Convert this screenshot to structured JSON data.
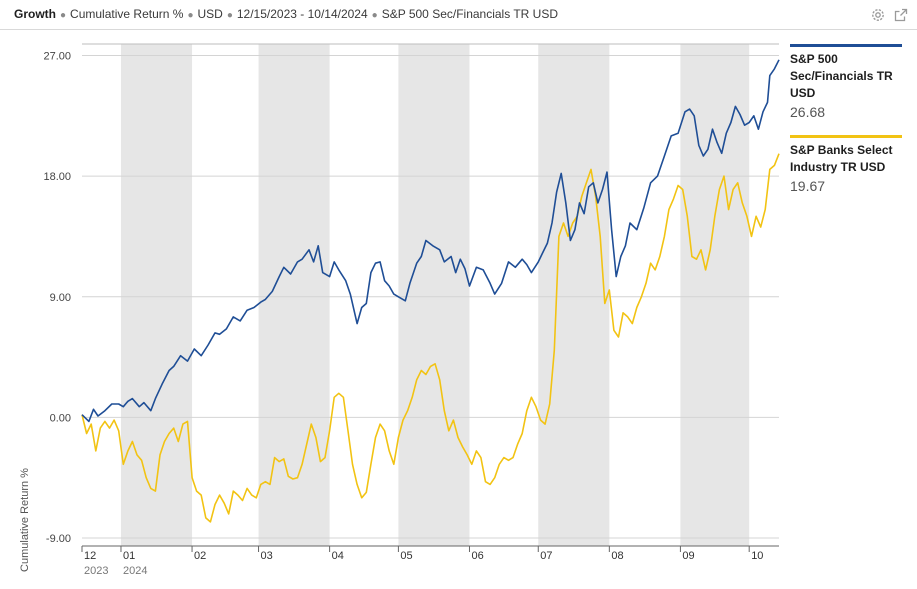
{
  "header": {
    "title": "Growth",
    "crumbs": [
      "Cumulative Return %",
      "USD",
      "12/15/2023 - 10/14/2024",
      "S&P 500 Sec/Financials TR USD"
    ]
  },
  "colors": {
    "series1": "#1f4e96",
    "series2": "#f2c313",
    "band": "#e6e6e6",
    "grid": "#d4d4d4"
  },
  "chart_data": {
    "type": "line",
    "ylabel": "Cumulative Return %",
    "ylim": [
      -9,
      27
    ],
    "yticks": [
      "27.00",
      "18.00",
      "9.00",
      "0.00",
      "-9.00"
    ],
    "yticks_values": [
      27,
      18,
      9,
      0,
      -9
    ],
    "x_start": 0,
    "x_end": 304,
    "x_unit": "days since 12/15/2023",
    "month_ticks": [
      {
        "label": "12",
        "sub": "2023",
        "day": 0
      },
      {
        "label": "01",
        "sub": "2024",
        "day": 17
      },
      {
        "label": "02",
        "sub": "",
        "day": 48
      },
      {
        "label": "03",
        "sub": "",
        "day": 77
      },
      {
        "label": "04",
        "sub": "",
        "day": 108
      },
      {
        "label": "05",
        "sub": "",
        "day": 138
      },
      {
        "label": "06",
        "sub": "",
        "day": 169
      },
      {
        "label": "07",
        "sub": "",
        "day": 199
      },
      {
        "label": "08",
        "sub": "",
        "day": 230
      },
      {
        "label": "09",
        "sub": "",
        "day": 261
      },
      {
        "label": "10",
        "sub": "",
        "day": 291
      }
    ],
    "shaded_months": [
      [
        17,
        48
      ],
      [
        77,
        108
      ],
      [
        138,
        169
      ],
      [
        199,
        230
      ],
      [
        261,
        291
      ]
    ],
    "series": [
      {
        "name": "S&P 500 Sec/Financials TR USD",
        "last_value": "26.68",
        "color": "#1f4e96",
        "points": [
          [
            0,
            0.2
          ],
          [
            3,
            -0.3
          ],
          [
            5,
            0.6
          ],
          [
            7,
            0.1
          ],
          [
            10,
            0.5
          ],
          [
            13,
            1.0
          ],
          [
            16,
            1.0
          ],
          [
            18,
            0.8
          ],
          [
            20,
            1.2
          ],
          [
            22,
            1.4
          ],
          [
            25,
            0.8
          ],
          [
            27,
            1.1
          ],
          [
            30,
            0.5
          ],
          [
            32,
            1.4
          ],
          [
            35,
            2.5
          ],
          [
            38,
            3.5
          ],
          [
            40,
            3.8
          ],
          [
            43,
            4.6
          ],
          [
            46,
            4.2
          ],
          [
            49,
            5.1
          ],
          [
            52,
            4.6
          ],
          [
            55,
            5.4
          ],
          [
            58,
            6.3
          ],
          [
            60,
            6.2
          ],
          [
            63,
            6.6
          ],
          [
            66,
            7.5
          ],
          [
            69,
            7.2
          ],
          [
            72,
            8.0
          ],
          [
            75,
            8.2
          ],
          [
            78,
            8.6
          ],
          [
            80,
            8.8
          ],
          [
            83,
            9.4
          ],
          [
            86,
            10.5
          ],
          [
            88,
            11.2
          ],
          [
            91,
            10.7
          ],
          [
            94,
            11.6
          ],
          [
            96,
            11.8
          ],
          [
            99,
            12.5
          ],
          [
            101,
            11.6
          ],
          [
            103,
            12.8
          ],
          [
            105,
            10.8
          ],
          [
            108,
            10.5
          ],
          [
            110,
            11.6
          ],
          [
            112,
            11.0
          ],
          [
            115,
            10.2
          ],
          [
            117,
            9.2
          ],
          [
            120,
            7.0
          ],
          [
            122,
            8.2
          ],
          [
            124,
            8.5
          ],
          [
            126,
            10.8
          ],
          [
            128,
            11.5
          ],
          [
            130,
            11.6
          ],
          [
            132,
            10.2
          ],
          [
            134,
            9.8
          ],
          [
            136,
            9.2
          ],
          [
            138,
            9.0
          ],
          [
            141,
            8.7
          ],
          [
            143,
            10.0
          ],
          [
            146,
            11.5
          ],
          [
            148,
            12.0
          ],
          [
            150,
            13.2
          ],
          [
            153,
            12.8
          ],
          [
            156,
            12.5
          ],
          [
            158,
            11.6
          ],
          [
            161,
            12.0
          ],
          [
            163,
            10.8
          ],
          [
            165,
            11.8
          ],
          [
            167,
            11.1
          ],
          [
            169,
            9.8
          ],
          [
            172,
            11.2
          ],
          [
            175,
            11.0
          ],
          [
            178,
            10.0
          ],
          [
            180,
            9.2
          ],
          [
            183,
            10.0
          ],
          [
            186,
            11.6
          ],
          [
            189,
            11.2
          ],
          [
            192,
            11.8
          ],
          [
            194,
            11.4
          ],
          [
            196,
            10.8
          ],
          [
            199,
            11.6
          ],
          [
            201,
            12.3
          ],
          [
            203,
            13.0
          ],
          [
            205,
            14.5
          ],
          [
            207,
            16.8
          ],
          [
            209,
            18.2
          ],
          [
            211,
            16.0
          ],
          [
            213,
            13.2
          ],
          [
            215,
            14.0
          ],
          [
            217,
            16.0
          ],
          [
            219,
            15.2
          ],
          [
            221,
            17.2
          ],
          [
            223,
            17.5
          ],
          [
            225,
            16.0
          ],
          [
            227,
            17.0
          ],
          [
            229,
            18.3
          ],
          [
            231,
            14.0
          ],
          [
            233,
            10.5
          ],
          [
            235,
            12.0
          ],
          [
            237,
            12.8
          ],
          [
            239,
            14.5
          ],
          [
            242,
            14.0
          ],
          [
            245,
            15.6
          ],
          [
            248,
            17.5
          ],
          [
            251,
            18.0
          ],
          [
            254,
            19.5
          ],
          [
            257,
            21.0
          ],
          [
            260,
            21.2
          ],
          [
            263,
            22.8
          ],
          [
            265,
            23.0
          ],
          [
            267,
            22.5
          ],
          [
            269,
            20.3
          ],
          [
            271,
            19.5
          ],
          [
            273,
            20.0
          ],
          [
            275,
            21.5
          ],
          [
            277,
            20.5
          ],
          [
            279,
            19.7
          ],
          [
            281,
            21.2
          ],
          [
            283,
            22.0
          ],
          [
            285,
            23.2
          ],
          [
            287,
            22.6
          ],
          [
            289,
            21.8
          ],
          [
            291,
            22.0
          ],
          [
            293,
            22.5
          ],
          [
            295,
            21.5
          ],
          [
            297,
            22.8
          ],
          [
            299,
            23.5
          ],
          [
            300,
            25.5
          ],
          [
            302,
            26.0
          ],
          [
            304,
            26.68
          ]
        ]
      },
      {
        "name": "S&P Banks Select Industry TR USD",
        "last_value": "19.67",
        "color": "#f2c313",
        "points": [
          [
            0,
            0.2
          ],
          [
            2,
            -1.2
          ],
          [
            4,
            -0.5
          ],
          [
            6,
            -2.5
          ],
          [
            8,
            -0.8
          ],
          [
            10,
            -0.3
          ],
          [
            12,
            -0.8
          ],
          [
            14,
            -0.2
          ],
          [
            16,
            -1.0
          ],
          [
            18,
            -3.5
          ],
          [
            20,
            -2.5
          ],
          [
            22,
            -1.8
          ],
          [
            24,
            -2.8
          ],
          [
            26,
            -3.2
          ],
          [
            28,
            -4.5
          ],
          [
            30,
            -5.3
          ],
          [
            32,
            -5.5
          ],
          [
            34,
            -2.8
          ],
          [
            36,
            -1.8
          ],
          [
            38,
            -1.2
          ],
          [
            40,
            -0.8
          ],
          [
            42,
            -1.8
          ],
          [
            44,
            -0.5
          ],
          [
            46,
            -0.3
          ],
          [
            48,
            -4.5
          ],
          [
            50,
            -5.5
          ],
          [
            52,
            -5.8
          ],
          [
            54,
            -7.5
          ],
          [
            56,
            -7.8
          ],
          [
            58,
            -6.5
          ],
          [
            60,
            -5.8
          ],
          [
            62,
            -6.4
          ],
          [
            64,
            -7.2
          ],
          [
            66,
            -5.5
          ],
          [
            68,
            -5.8
          ],
          [
            70,
            -6.2
          ],
          [
            72,
            -5.3
          ],
          [
            74,
            -5.8
          ],
          [
            76,
            -6.0
          ],
          [
            78,
            -5.0
          ],
          [
            80,
            -4.8
          ],
          [
            82,
            -5.0
          ],
          [
            84,
            -3.0
          ],
          [
            86,
            -3.3
          ],
          [
            88,
            -3.1
          ],
          [
            90,
            -4.4
          ],
          [
            92,
            -4.6
          ],
          [
            94,
            -4.5
          ],
          [
            96,
            -3.5
          ],
          [
            98,
            -2.0
          ],
          [
            100,
            -0.5
          ],
          [
            102,
            -1.5
          ],
          [
            104,
            -3.3
          ],
          [
            106,
            -3.0
          ],
          [
            108,
            -1.0
          ],
          [
            110,
            1.5
          ],
          [
            112,
            1.8
          ],
          [
            114,
            1.5
          ],
          [
            116,
            -1.0
          ],
          [
            118,
            -3.5
          ],
          [
            120,
            -5.0
          ],
          [
            122,
            -6.0
          ],
          [
            124,
            -5.6
          ],
          [
            126,
            -3.5
          ],
          [
            128,
            -1.5
          ],
          [
            130,
            -0.5
          ],
          [
            132,
            -1.0
          ],
          [
            134,
            -2.5
          ],
          [
            136,
            -3.5
          ],
          [
            138,
            -1.5
          ],
          [
            140,
            -0.2
          ],
          [
            142,
            0.5
          ],
          [
            144,
            1.5
          ],
          [
            146,
            2.8
          ],
          [
            148,
            3.5
          ],
          [
            150,
            3.2
          ],
          [
            152,
            3.8
          ],
          [
            154,
            4.0
          ],
          [
            156,
            2.8
          ],
          [
            158,
            0.5
          ],
          [
            160,
            -1.0
          ],
          [
            162,
            -0.2
          ],
          [
            164,
            -1.5
          ],
          [
            166,
            -2.2
          ],
          [
            168,
            -2.8
          ],
          [
            170,
            -3.5
          ],
          [
            172,
            -2.5
          ],
          [
            174,
            -3.0
          ],
          [
            176,
            -4.8
          ],
          [
            178,
            -5.0
          ],
          [
            180,
            -4.5
          ],
          [
            182,
            -3.5
          ],
          [
            184,
            -3.0
          ],
          [
            186,
            -3.2
          ],
          [
            188,
            -3.0
          ],
          [
            190,
            -2.0
          ],
          [
            192,
            -1.2
          ],
          [
            194,
            0.5
          ],
          [
            196,
            1.5
          ],
          [
            198,
            0.8
          ],
          [
            200,
            -0.2
          ],
          [
            202,
            -0.5
          ],
          [
            204,
            1.0
          ],
          [
            206,
            5.0
          ],
          [
            208,
            13.5
          ],
          [
            210,
            14.5
          ],
          [
            212,
            13.5
          ],
          [
            214,
            14.5
          ],
          [
            216,
            15.0
          ],
          [
            218,
            16.5
          ],
          [
            220,
            17.5
          ],
          [
            222,
            18.5
          ],
          [
            224,
            16.5
          ],
          [
            226,
            13.5
          ],
          [
            228,
            8.5
          ],
          [
            230,
            9.5
          ],
          [
            232,
            6.5
          ],
          [
            234,
            6.0
          ],
          [
            236,
            7.8
          ],
          [
            238,
            7.5
          ],
          [
            240,
            7.0
          ],
          [
            242,
            8.2
          ],
          [
            244,
            9.0
          ],
          [
            246,
            10.0
          ],
          [
            248,
            11.5
          ],
          [
            250,
            11.0
          ],
          [
            252,
            12.0
          ],
          [
            254,
            13.5
          ],
          [
            256,
            15.5
          ],
          [
            258,
            16.3
          ],
          [
            260,
            17.3
          ],
          [
            262,
            17.0
          ],
          [
            264,
            15.0
          ],
          [
            266,
            12.0
          ],
          [
            268,
            11.8
          ],
          [
            270,
            12.5
          ],
          [
            272,
            11.0
          ],
          [
            274,
            12.5
          ],
          [
            276,
            15.0
          ],
          [
            278,
            17.0
          ],
          [
            280,
            18.0
          ],
          [
            282,
            15.5
          ],
          [
            284,
            17.0
          ],
          [
            286,
            17.5
          ],
          [
            288,
            16.0
          ],
          [
            290,
            15.0
          ],
          [
            292,
            13.5
          ],
          [
            294,
            15.0
          ],
          [
            296,
            14.2
          ],
          [
            298,
            15.5
          ],
          [
            300,
            18.5
          ],
          [
            302,
            18.8
          ],
          [
            304,
            19.67
          ]
        ]
      }
    ]
  }
}
